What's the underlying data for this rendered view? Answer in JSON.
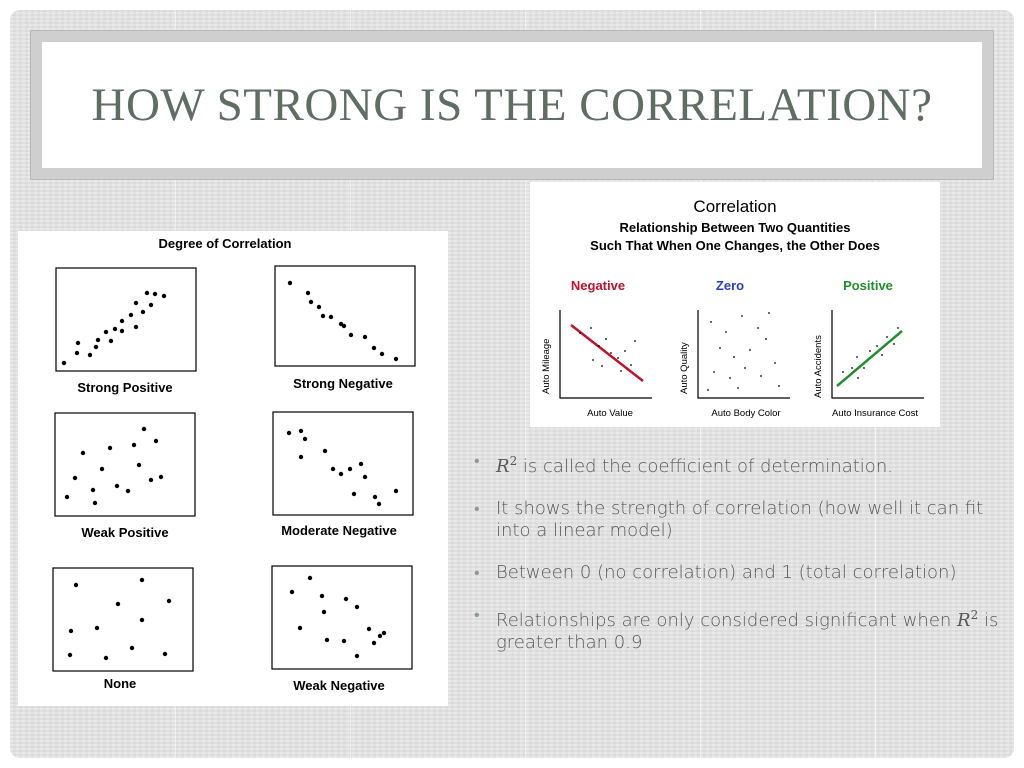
{
  "slide": {
    "title": "HOW STRONG IS THE CORRELATION?"
  },
  "degree_chart": {
    "title": "Degree of Correlation",
    "panels": [
      {
        "label": "Strong Positive"
      },
      {
        "label": "Strong Negative"
      },
      {
        "label": "Weak Positive"
      },
      {
        "label": "Moderate Negative"
      },
      {
        "label": "None"
      },
      {
        "label": "Weak Negative"
      }
    ]
  },
  "correlation_chart": {
    "title": "Correlation",
    "subtitle_line1": "Relationship Between Two Quantities",
    "subtitle_line2": "Such That When One Changes, the Other Does",
    "negative": {
      "heading": "Negative",
      "ylabel": "Auto Mileage",
      "xlabel": "Auto Value",
      "color": "#c0102a"
    },
    "zero": {
      "heading": "Zero",
      "ylabel": "Auto Quality",
      "xlabel": "Auto Body Color",
      "color": "#2a3fbf"
    },
    "positive": {
      "heading": "Positive",
      "ylabel": "Auto Accidents",
      "xlabel": "Auto Insurance Cost",
      "color": "#1f8f2a"
    }
  },
  "bullets": {
    "b1_symbol": "R",
    "b1_exp": "2",
    "b1_text": " is called the coefficient of determination.",
    "b2_text": "It shows the strength of correlation (how well it can fit into a linear model)",
    "b3_text": "Between 0 (no correlation) and 1 (total correlation)",
    "b4_pre": "Relationships are only considered significant when ",
    "b4_symbol": "R",
    "b4_exp": "2",
    "b4_post": " is greater than 0.9"
  }
}
